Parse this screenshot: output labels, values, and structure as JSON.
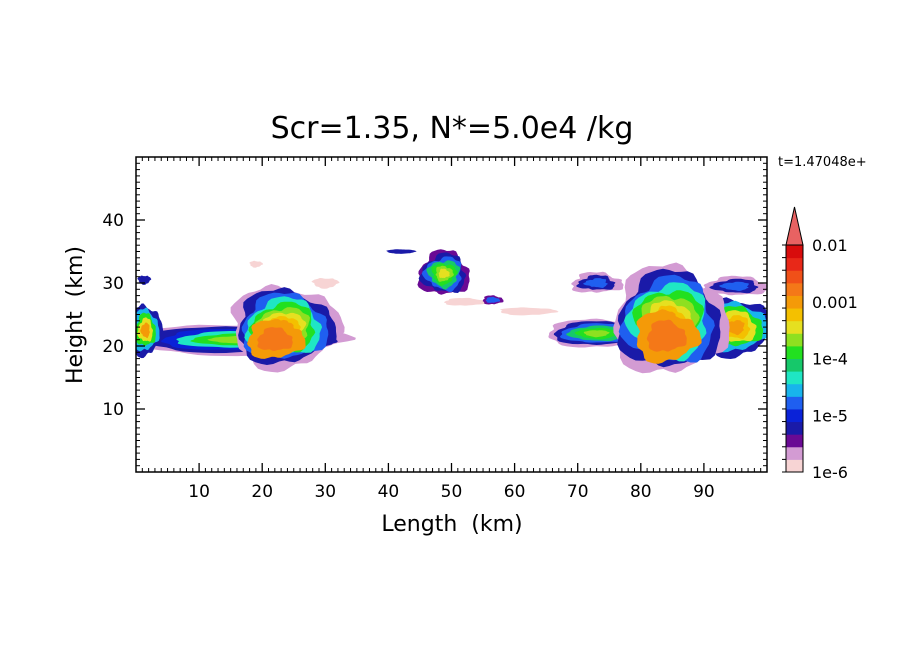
{
  "chart_data": {
    "type": "heatmap",
    "title": "Scr=1.35, N*=5.0e4 /kg",
    "annotation": "t=1.47048e+",
    "xlabel": "Length  (km)",
    "ylabel": "Height  (km)",
    "xlim": [
      0,
      100
    ],
    "ylim": [
      0,
      50
    ],
    "x_ticks": [
      10,
      20,
      30,
      40,
      50,
      60,
      70,
      80,
      90
    ],
    "y_ticks": [
      10,
      20,
      30,
      40
    ],
    "colorbar": {
      "labels": [
        "0.01",
        "0.001",
        "1e-4",
        "1e-5",
        "1e-6"
      ],
      "scale": "log",
      "extend": "max",
      "colors": [
        "#f7d4d4",
        "#d39bd3",
        "#6a0a94",
        "#1a1aa8",
        "#0a22d8",
        "#1f5ff0",
        "#18b4ec",
        "#1fe6c4",
        "#16c86a",
        "#22e020",
        "#8ee020",
        "#e6e020",
        "#f4c000",
        "#f49a08",
        "#f47818",
        "#f05018",
        "#e82818",
        "#d80c0c",
        "#e86262"
      ]
    },
    "regions": [
      {
        "name": "left anvil layer",
        "x": [
          0,
          33
        ],
        "y": [
          17,
          26
        ],
        "peak_level": "1e-4"
      },
      {
        "name": "core near 22 km",
        "x": [
          16,
          33
        ],
        "y": [
          16,
          30
        ],
        "peak_level": "0.001"
      },
      {
        "name": "plume near 48 km",
        "x": [
          44,
          53
        ],
        "y": [
          28,
          35
        ],
        "peak_level": "1e-4"
      },
      {
        "name": "right anvil layer",
        "x": [
          65,
          100
        ],
        "y": [
          17,
          33
        ],
        "peak_level": "1e-4"
      },
      {
        "name": "core near 84 km",
        "x": [
          77,
          92
        ],
        "y": [
          15,
          31
        ],
        "peak_level": "0.001"
      }
    ]
  }
}
